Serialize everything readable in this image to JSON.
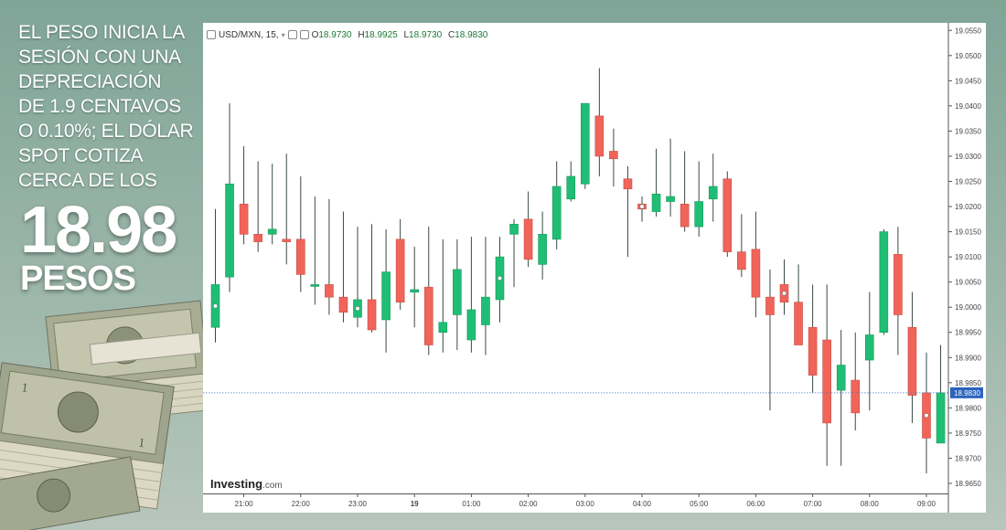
{
  "headline": {
    "lines": [
      "EL PESO INICIA LA",
      "SESIÓN CON UNA",
      "DEPRECIACIÓN",
      "DE 1.9 CENTAVOS",
      "O 0.10%; EL DÓLAR",
      "SPOT COTIZA",
      "CERCA DE LOS"
    ],
    "price": "18.98",
    "unit": "PESOS"
  },
  "header": {
    "symbol": "USD/MXN, 15,",
    "o_label": "O",
    "o_value": "18.9730",
    "h_label": "H",
    "h_value": "18.9925",
    "l_label": "L",
    "l_value": "18.9730",
    "c_label": "C",
    "c_value": "18.9830"
  },
  "brand": {
    "name": "Investing",
    "suffix": ".com"
  },
  "colors": {
    "up": "#1fbe74",
    "down": "#f0645a",
    "wick": "#3a4a44",
    "price_line": "#4a78c2"
  },
  "chart_data": {
    "type": "candlestick",
    "xlabel": "",
    "ylabel": "",
    "ylim": [
      18.963,
      19.0565
    ],
    "y_ticks": [
      "19.0550",
      "19.0500",
      "19.0450",
      "19.0400",
      "19.0350",
      "19.0300",
      "19.0250",
      "19.0200",
      "19.0150",
      "19.0100",
      "19.0050",
      "19.0000",
      "18.9950",
      "18.9900",
      "18.9850",
      "18.9830",
      "18.9800",
      "18.9750",
      "18.9700",
      "18.9650"
    ],
    "x_ticks": [
      {
        "label": "21:00",
        "index": 2
      },
      {
        "label": "22:00",
        "index": 6
      },
      {
        "label": "23:00",
        "index": 10
      },
      {
        "label": "19",
        "index": 14
      },
      {
        "label": "01:00",
        "index": 18
      },
      {
        "label": "02:00",
        "index": 22
      },
      {
        "label": "03:00",
        "index": 26
      },
      {
        "label": "04:00",
        "index": 30
      },
      {
        "label": "05:00",
        "index": 34
      },
      {
        "label": "06:00",
        "index": 38
      },
      {
        "label": "07:00",
        "index": 42
      },
      {
        "label": "08:00",
        "index": 46
      },
      {
        "label": "09:00",
        "index": 50
      }
    ],
    "last_price": 18.983,
    "candles": [
      {
        "o": 18.996,
        "h": 19.0195,
        "l": 18.993,
        "c": 19.0045
      },
      {
        "o": 19.006,
        "h": 19.0405,
        "l": 19.003,
        "c": 19.0245
      },
      {
        "o": 19.0205,
        "h": 19.032,
        "l": 19.0125,
        "c": 19.0145
      },
      {
        "o": 19.0145,
        "h": 19.029,
        "l": 19.011,
        "c": 19.013
      },
      {
        "o": 19.0145,
        "h": 19.0285,
        "l": 19.0125,
        "c": 19.0155
      },
      {
        "o": 19.0135,
        "h": 19.0305,
        "l": 19.0085,
        "c": 19.013
      },
      {
        "o": 19.0135,
        "h": 19.026,
        "l": 19.003,
        "c": 19.0065
      },
      {
        "o": 19.0045,
        "h": 19.022,
        "l": 19.0005,
        "c": 19.0045
      },
      {
        "o": 19.0045,
        "h": 19.0215,
        "l": 18.9985,
        "c": 19.002
      },
      {
        "o": 19.002,
        "h": 19.019,
        "l": 18.997,
        "c": 18.999
      },
      {
        "o": 18.998,
        "h": 19.016,
        "l": 18.996,
        "c": 19.0015
      },
      {
        "o": 19.0015,
        "h": 19.0165,
        "l": 18.995,
        "c": 18.9955
      },
      {
        "o": 18.9975,
        "h": 19.0155,
        "l": 18.991,
        "c": 19.007
      },
      {
        "o": 19.0135,
        "h": 19.0175,
        "l": 18.9995,
        "c": 19.001
      },
      {
        "o": 19.003,
        "h": 19.012,
        "l": 18.996,
        "c": 19.0035
      },
      {
        "o": 19.004,
        "h": 19.016,
        "l": 18.9905,
        "c": 18.9925
      },
      {
        "o": 18.995,
        "h": 19.0135,
        "l": 18.991,
        "c": 18.997
      },
      {
        "o": 18.9985,
        "h": 19.0135,
        "l": 18.9915,
        "c": 19.0075
      },
      {
        "o": 18.9935,
        "h": 19.014,
        "l": 18.991,
        "c": 18.9995
      },
      {
        "o": 18.9965,
        "h": 19.014,
        "l": 18.9905,
        "c": 19.002
      },
      {
        "o": 19.0015,
        "h": 19.014,
        "l": 18.997,
        "c": 19.01
      },
      {
        "o": 19.0145,
        "h": 19.0175,
        "l": 19.004,
        "c": 19.0165
      },
      {
        "o": 19.0175,
        "h": 19.023,
        "l": 19.008,
        "c": 19.0095
      },
      {
        "o": 19.0085,
        "h": 19.019,
        "l": 19.0055,
        "c": 19.0145
      },
      {
        "o": 19.0135,
        "h": 19.029,
        "l": 19.0115,
        "c": 19.024
      },
      {
        "o": 19.0215,
        "h": 19.029,
        "l": 19.021,
        "c": 19.026
      },
      {
        "o": 19.0245,
        "h": 19.0405,
        "l": 19.0235,
        "c": 19.0405
      },
      {
        "o": 19.038,
        "h": 19.0475,
        "l": 19.026,
        "c": 19.03
      },
      {
        "o": 19.031,
        "h": 19.0355,
        "l": 19.024,
        "c": 19.0295
      },
      {
        "o": 19.0255,
        "h": 19.028,
        "l": 19.01,
        "c": 19.0235
      },
      {
        "o": 19.0205,
        "h": 19.022,
        "l": 19.017,
        "c": 19.0195
      },
      {
        "o": 19.019,
        "h": 19.0315,
        "l": 19.018,
        "c": 19.0225
      },
      {
        "o": 19.021,
        "h": 19.0335,
        "l": 19.018,
        "c": 19.022
      },
      {
        "o": 19.0205,
        "h": 19.031,
        "l": 19.015,
        "c": 19.016
      },
      {
        "o": 19.016,
        "h": 19.029,
        "l": 19.014,
        "c": 19.021
      },
      {
        "o": 19.0215,
        "h": 19.0305,
        "l": 19.017,
        "c": 19.024
      },
      {
        "o": 19.0255,
        "h": 19.027,
        "l": 19.01,
        "c": 19.011
      },
      {
        "o": 19.011,
        "h": 19.0185,
        "l": 19.006,
        "c": 19.0075
      },
      {
        "o": 19.0115,
        "h": 19.019,
        "l": 18.998,
        "c": 19.002
      },
      {
        "o": 19.002,
        "h": 19.0075,
        "l": 18.9795,
        "c": 18.9985
      },
      {
        "o": 19.0045,
        "h": 19.0095,
        "l": 18.9985,
        "c": 19.001
      },
      {
        "o": 19.001,
        "h": 19.0085,
        "l": 18.993,
        "c": 18.9925
      },
      {
        "o": 18.996,
        "h": 19.0045,
        "l": 18.983,
        "c": 18.9865
      },
      {
        "o": 18.9935,
        "h": 19.0045,
        "l": 18.9685,
        "c": 18.977
      },
      {
        "o": 18.9835,
        "h": 18.9955,
        "l": 18.9685,
        "c": 18.9885
      },
      {
        "o": 18.9855,
        "h": 18.995,
        "l": 18.9755,
        "c": 18.979
      },
      {
        "o": 18.9895,
        "h": 19.003,
        "l": 18.9795,
        "c": 18.9945
      },
      {
        "o": 18.995,
        "h": 19.0155,
        "l": 18.9945,
        "c": 19.015
      },
      {
        "o": 19.0105,
        "h": 19.016,
        "l": 18.9905,
        "c": 18.9985
      },
      {
        "o": 18.996,
        "h": 19.003,
        "l": 18.977,
        "c": 18.9825
      },
      {
        "o": 18.983,
        "h": 18.991,
        "l": 18.967,
        "c": 18.974
      },
      {
        "o": 18.973,
        "h": 18.9925,
        "l": 18.973,
        "c": 18.983
      }
    ],
    "markers": [
      0,
      10,
      20,
      30,
      40,
      50
    ]
  }
}
